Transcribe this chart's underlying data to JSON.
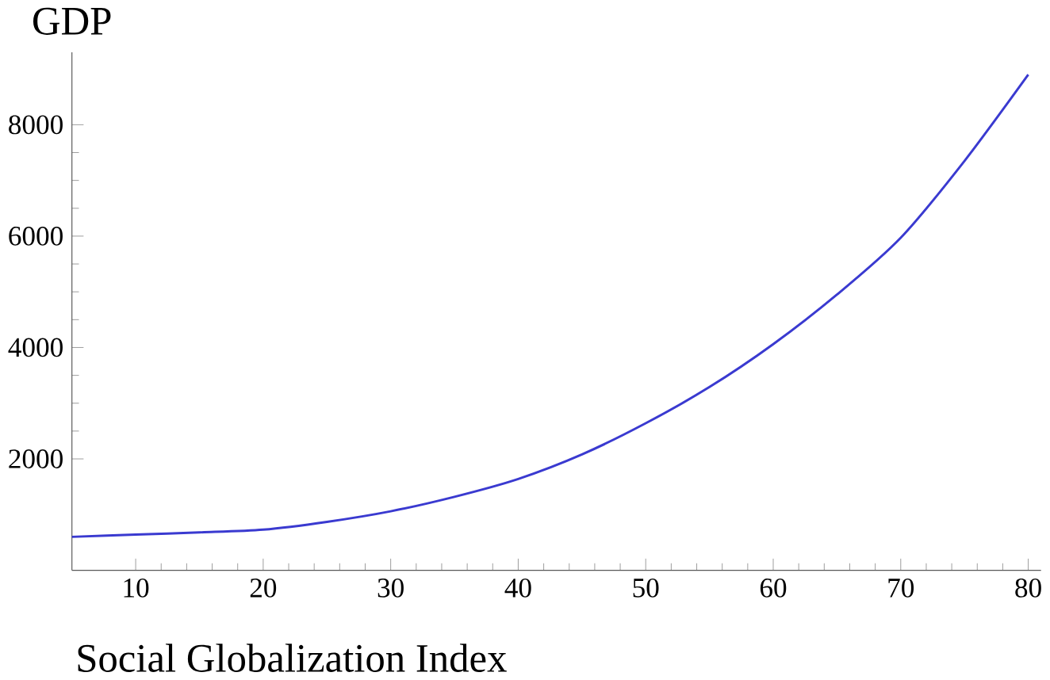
{
  "chart_data": {
    "type": "line",
    "xlabel": "Social Globalization Index",
    "ylabel": "GDP",
    "x": [
      5,
      10,
      15,
      20,
      25,
      30,
      35,
      40,
      45,
      50,
      55,
      60,
      65,
      70,
      75,
      80
    ],
    "series": [
      {
        "color": "#3a3ad0",
        "values": [
          600,
          640,
          680,
          730,
          870,
          1060,
          1320,
          1640,
          2080,
          2640,
          3290,
          4060,
          4950,
          5970,
          7350,
          8900
        ]
      }
    ],
    "xlim": [
      5,
      81
    ],
    "ylim": [
      0,
      9300
    ],
    "xticks": [
      10,
      20,
      30,
      40,
      50,
      60,
      70,
      80
    ],
    "yticks": [
      2000,
      4000,
      6000,
      8000
    ],
    "grid": false,
    "marker": "none",
    "line_style": "solid"
  }
}
